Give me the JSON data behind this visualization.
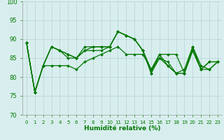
{
  "xlabel": "Humidité relative (%)",
  "xlim": [
    -0.5,
    23.5
  ],
  "ylim": [
    70,
    100
  ],
  "yticks": [
    70,
    75,
    80,
    85,
    90,
    95,
    100
  ],
  "xtick_labels": [
    "0",
    "1",
    "2",
    "3",
    "4",
    "5",
    "6",
    "7",
    "8",
    "9",
    "10",
    "11",
    "12",
    "13",
    "14",
    "15",
    "16",
    "17",
    "18",
    "19",
    "20",
    "21",
    "22",
    "23"
  ],
  "background_color": "#d8eeee",
  "grid_color": "#aacccc",
  "line_color": "#007700",
  "series": [
    [
      89,
      76,
      83,
      88,
      87,
      86,
      85,
      88,
      88,
      88,
      88,
      92,
      91,
      90,
      87,
      81,
      86,
      86,
      86,
      81,
      87,
      82,
      84,
      84
    ],
    [
      89,
      76,
      83,
      88,
      87,
      85,
      85,
      87,
      88,
      88,
      88,
      92,
      91,
      90,
      87,
      82,
      86,
      83,
      81,
      81,
      87,
      82,
      84,
      84
    ],
    [
      89,
      76,
      83,
      88,
      87,
      86,
      85,
      87,
      87,
      87,
      88,
      92,
      91,
      90,
      87,
      81,
      85,
      84,
      81,
      81,
      88,
      82,
      82,
      84
    ],
    [
      89,
      76,
      83,
      83,
      83,
      83,
      82,
      84,
      85,
      86,
      87,
      88,
      86,
      86,
      86,
      82,
      85,
      83,
      81,
      82,
      88,
      83,
      82,
      84
    ]
  ],
  "ytick_fontsize": 6,
  "xtick_fontsize": 5,
  "xlabel_fontsize": 6.5,
  "linewidth": 0.9,
  "markersize": 2.0
}
